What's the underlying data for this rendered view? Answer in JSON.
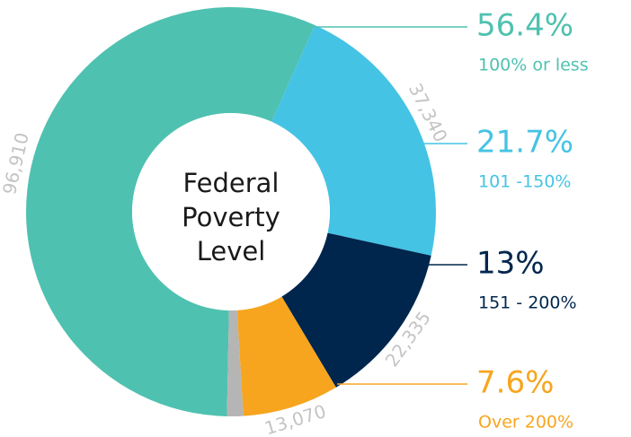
{
  "chart_data": {
    "type": "donut",
    "center_label": [
      "Federal",
      "Poverty",
      "Level"
    ],
    "categories": [
      "100% or less",
      "101 -150%",
      "151 - 200%",
      "Over 200%",
      null
    ],
    "values": [
      96910,
      37340,
      22335,
      13070,
      2200
    ],
    "value_labels": [
      "96,910",
      "37,340",
      "22,335",
      "13,070",
      null
    ],
    "percent_values": [
      56.4,
      21.7,
      13,
      7.6,
      null
    ],
    "percent_labels": [
      "56.4%",
      "21.7%",
      "13%",
      "7.6%",
      null
    ],
    "colors": [
      "#4fc1b0",
      "#45c3e4",
      "#00264d",
      "#f7a51e",
      "#b5b5b5"
    ]
  }
}
